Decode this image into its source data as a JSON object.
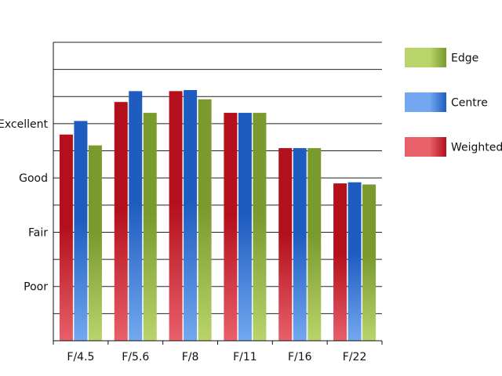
{
  "chart_data": {
    "type": "bar",
    "categories": [
      "F/4.5",
      "F/5.6",
      "F/8",
      "F/11",
      "F/16",
      "F/22"
    ],
    "series": [
      {
        "name": "Weighted",
        "values": [
          3.8,
          4.4,
          4.6,
          4.2,
          3.55,
          2.9
        ],
        "color_top": "#b3101c",
        "color_bottom": "#e8606a"
      },
      {
        "name": "Centre",
        "values": [
          4.05,
          4.6,
          4.62,
          4.2,
          3.55,
          2.92
        ],
        "color_top": "#1e5cc0",
        "color_bottom": "#73a8f0"
      },
      {
        "name": "Edge",
        "values": [
          3.6,
          4.2,
          4.45,
          4.2,
          3.55,
          2.88
        ],
        "color_top": "#7a9a2e",
        "color_bottom": "#b8d46a"
      }
    ],
    "y_tick_labels": [
      {
        "value": 1,
        "label": "Poor"
      },
      {
        "value": 2,
        "label": "Fair"
      },
      {
        "value": 3,
        "label": "Good"
      },
      {
        "value": 4,
        "label": "Excellent"
      }
    ],
    "ylim": [
      0,
      5.5
    ],
    "grid_step": 0.5,
    "grid": true,
    "legend": {
      "placement": "right",
      "entries": [
        "Edge",
        "Centre",
        "Weighted"
      ]
    }
  }
}
